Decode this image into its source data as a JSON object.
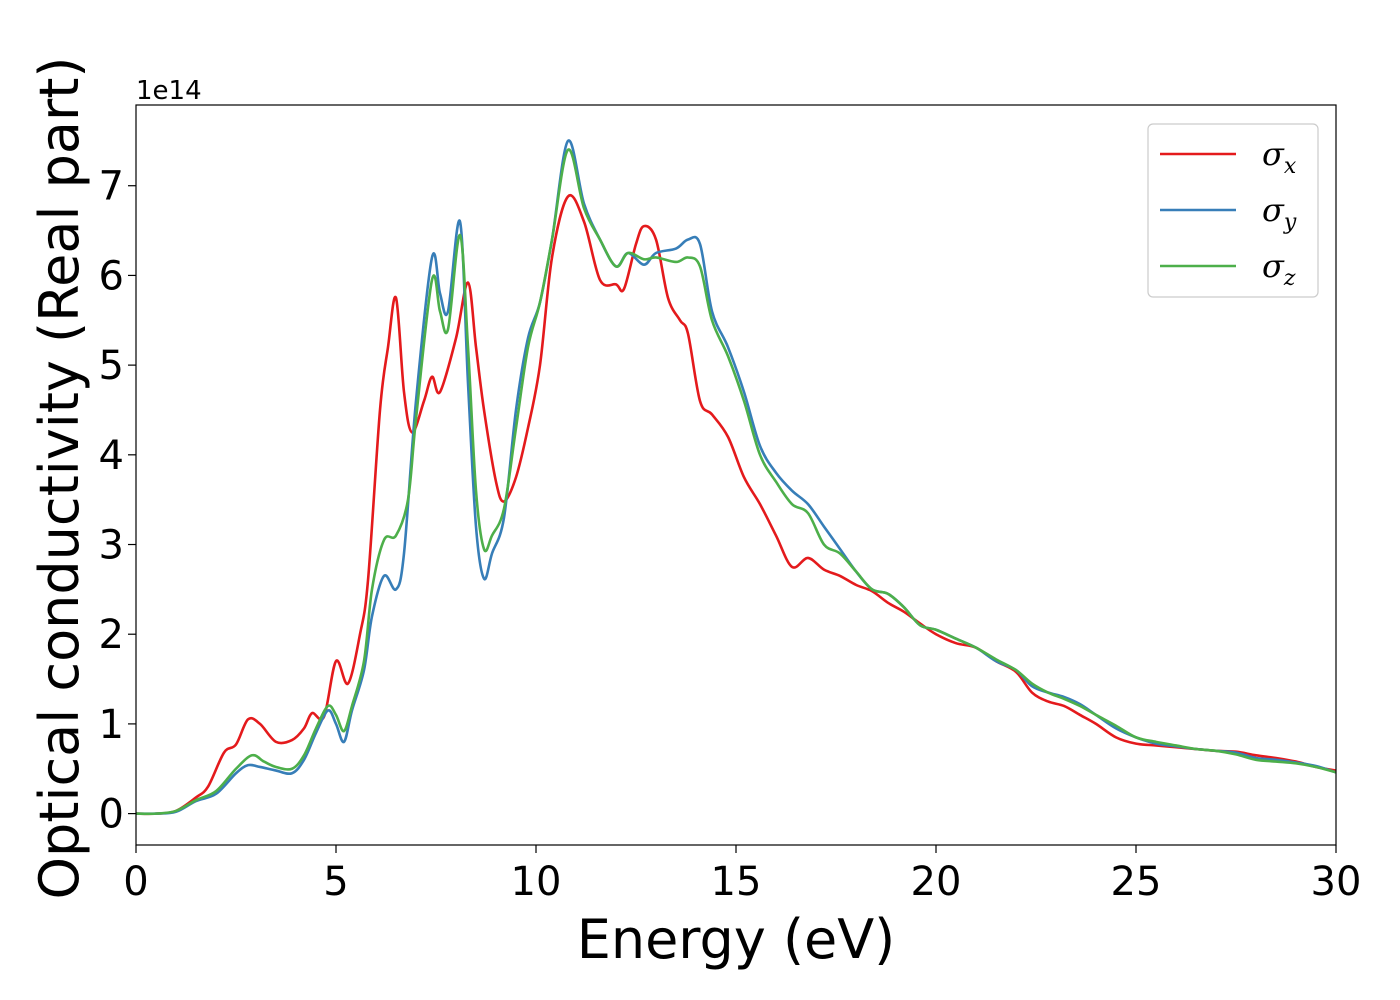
{
  "chart_data": {
    "type": "line",
    "xlabel": "Energy (eV)",
    "ylabel": "Optical conductivity (Real part)",
    "y_offset_label": "1e14",
    "xlim": [
      0,
      30
    ],
    "ylim": [
      -0.35,
      7.9
    ],
    "xticks": [
      0,
      5,
      10,
      15,
      20,
      25,
      30
    ],
    "yticks": [
      0,
      1,
      2,
      3,
      4,
      5,
      6,
      7
    ],
    "grid": false,
    "legend_position": "top-right",
    "series": [
      {
        "name": "σx",
        "symbol": "σ",
        "subscript": "x",
        "color": "#e41a1c",
        "points": [
          [
            0,
            0
          ],
          [
            0.5,
            0
          ],
          [
            1,
            0.03
          ],
          [
            1.5,
            0.18
          ],
          [
            1.8,
            0.3
          ],
          [
            2.2,
            0.68
          ],
          [
            2.5,
            0.77
          ],
          [
            2.8,
            1.05
          ],
          [
            3.1,
            1.0
          ],
          [
            3.5,
            0.8
          ],
          [
            3.9,
            0.82
          ],
          [
            4.2,
            0.95
          ],
          [
            4.4,
            1.12
          ],
          [
            4.7,
            1.08
          ],
          [
            5.0,
            1.7
          ],
          [
            5.3,
            1.45
          ],
          [
            5.6,
            2.0
          ],
          [
            5.8,
            2.6
          ],
          [
            6.1,
            4.5
          ],
          [
            6.3,
            5.2
          ],
          [
            6.5,
            5.75
          ],
          [
            6.7,
            4.7
          ],
          [
            6.9,
            4.25
          ],
          [
            7.2,
            4.6
          ],
          [
            7.4,
            4.87
          ],
          [
            7.6,
            4.7
          ],
          [
            8.0,
            5.3
          ],
          [
            8.3,
            5.92
          ],
          [
            8.5,
            5.2
          ],
          [
            8.7,
            4.5
          ],
          [
            9.0,
            3.7
          ],
          [
            9.2,
            3.48
          ],
          [
            9.5,
            3.75
          ],
          [
            9.8,
            4.3
          ],
          [
            10.1,
            5.0
          ],
          [
            10.4,
            6.2
          ],
          [
            10.8,
            6.88
          ],
          [
            11.2,
            6.6
          ],
          [
            11.6,
            5.95
          ],
          [
            12.0,
            5.9
          ],
          [
            12.2,
            5.85
          ],
          [
            12.5,
            6.35
          ],
          [
            12.7,
            6.55
          ],
          [
            13.0,
            6.4
          ],
          [
            13.3,
            5.75
          ],
          [
            13.6,
            5.5
          ],
          [
            13.8,
            5.35
          ],
          [
            14.1,
            4.6
          ],
          [
            14.4,
            4.45
          ],
          [
            14.8,
            4.2
          ],
          [
            15.2,
            3.75
          ],
          [
            15.6,
            3.45
          ],
          [
            16.0,
            3.1
          ],
          [
            16.4,
            2.75
          ],
          [
            16.8,
            2.85
          ],
          [
            17.2,
            2.72
          ],
          [
            17.6,
            2.65
          ],
          [
            18.0,
            2.55
          ],
          [
            18.4,
            2.48
          ],
          [
            18.8,
            2.35
          ],
          [
            19.2,
            2.25
          ],
          [
            19.6,
            2.12
          ],
          [
            20.0,
            2.0
          ],
          [
            20.5,
            1.9
          ],
          [
            21.0,
            1.85
          ],
          [
            21.5,
            1.7
          ],
          [
            22.0,
            1.58
          ],
          [
            22.4,
            1.35
          ],
          [
            22.8,
            1.25
          ],
          [
            23.2,
            1.2
          ],
          [
            23.6,
            1.1
          ],
          [
            24.0,
            1.0
          ],
          [
            24.5,
            0.85
          ],
          [
            25.0,
            0.78
          ],
          [
            25.5,
            0.76
          ],
          [
            26.0,
            0.74
          ],
          [
            26.5,
            0.72
          ],
          [
            27.0,
            0.7
          ],
          [
            27.5,
            0.69
          ],
          [
            28.0,
            0.65
          ],
          [
            28.5,
            0.62
          ],
          [
            29.0,
            0.58
          ],
          [
            29.5,
            0.52
          ],
          [
            30.0,
            0.48
          ]
        ]
      },
      {
        "name": "σy",
        "symbol": "σ",
        "subscript": "y",
        "color": "#377eb8",
        "points": [
          [
            0,
            0
          ],
          [
            0.5,
            0
          ],
          [
            1,
            0.02
          ],
          [
            1.5,
            0.14
          ],
          [
            2.0,
            0.22
          ],
          [
            2.5,
            0.45
          ],
          [
            2.8,
            0.54
          ],
          [
            3.1,
            0.52
          ],
          [
            3.5,
            0.48
          ],
          [
            3.9,
            0.45
          ],
          [
            4.2,
            0.6
          ],
          [
            4.5,
            0.9
          ],
          [
            4.8,
            1.15
          ],
          [
            5.0,
            1.0
          ],
          [
            5.2,
            0.8
          ],
          [
            5.4,
            1.15
          ],
          [
            5.7,
            1.6
          ],
          [
            5.9,
            2.2
          ],
          [
            6.2,
            2.65
          ],
          [
            6.5,
            2.5
          ],
          [
            6.7,
            2.9
          ],
          [
            7.0,
            4.6
          ],
          [
            7.4,
            6.2
          ],
          [
            7.6,
            5.8
          ],
          [
            7.8,
            5.6
          ],
          [
            8.1,
            6.6
          ],
          [
            8.3,
            4.8
          ],
          [
            8.5,
            3.2
          ],
          [
            8.7,
            2.62
          ],
          [
            8.9,
            2.9
          ],
          [
            9.2,
            3.3
          ],
          [
            9.5,
            4.5
          ],
          [
            9.8,
            5.3
          ],
          [
            10.1,
            5.7
          ],
          [
            10.4,
            6.4
          ],
          [
            10.8,
            7.5
          ],
          [
            11.2,
            6.8
          ],
          [
            11.6,
            6.4
          ],
          [
            12.0,
            6.1
          ],
          [
            12.3,
            6.25
          ],
          [
            12.7,
            6.12
          ],
          [
            13.0,
            6.25
          ],
          [
            13.5,
            6.3
          ],
          [
            13.8,
            6.4
          ],
          [
            14.1,
            6.35
          ],
          [
            14.4,
            5.6
          ],
          [
            14.8,
            5.2
          ],
          [
            15.2,
            4.7
          ],
          [
            15.6,
            4.1
          ],
          [
            16.0,
            3.8
          ],
          [
            16.4,
            3.6
          ],
          [
            16.8,
            3.45
          ],
          [
            17.2,
            3.2
          ],
          [
            17.6,
            2.95
          ],
          [
            18.0,
            2.7
          ],
          [
            18.4,
            2.5
          ],
          [
            18.8,
            2.45
          ],
          [
            19.2,
            2.3
          ],
          [
            19.6,
            2.1
          ],
          [
            20.0,
            2.05
          ],
          [
            20.5,
            1.95
          ],
          [
            21.0,
            1.85
          ],
          [
            21.5,
            1.7
          ],
          [
            22.0,
            1.6
          ],
          [
            22.4,
            1.42
          ],
          [
            22.8,
            1.35
          ],
          [
            23.2,
            1.3
          ],
          [
            23.6,
            1.22
          ],
          [
            24.0,
            1.1
          ],
          [
            24.5,
            0.95
          ],
          [
            25.0,
            0.85
          ],
          [
            25.5,
            0.78
          ],
          [
            26.0,
            0.75
          ],
          [
            26.5,
            0.72
          ],
          [
            27.0,
            0.7
          ],
          [
            27.5,
            0.68
          ],
          [
            28.0,
            0.62
          ],
          [
            28.5,
            0.6
          ],
          [
            29.0,
            0.57
          ],
          [
            29.5,
            0.53
          ],
          [
            30.0,
            0.46
          ]
        ]
      },
      {
        "name": "σz",
        "symbol": "σ",
        "subscript": "z",
        "color": "#4daf4a",
        "points": [
          [
            0,
            0
          ],
          [
            0.5,
            0
          ],
          [
            1,
            0.03
          ],
          [
            1.5,
            0.15
          ],
          [
            2.0,
            0.25
          ],
          [
            2.5,
            0.5
          ],
          [
            2.9,
            0.65
          ],
          [
            3.2,
            0.58
          ],
          [
            3.5,
            0.52
          ],
          [
            3.9,
            0.5
          ],
          [
            4.2,
            0.65
          ],
          [
            4.5,
            0.95
          ],
          [
            4.8,
            1.2
          ],
          [
            5.0,
            1.1
          ],
          [
            5.2,
            0.92
          ],
          [
            5.4,
            1.2
          ],
          [
            5.7,
            1.7
          ],
          [
            5.9,
            2.5
          ],
          [
            6.2,
            3.05
          ],
          [
            6.5,
            3.1
          ],
          [
            6.8,
            3.5
          ],
          [
            7.0,
            4.4
          ],
          [
            7.4,
            5.95
          ],
          [
            7.6,
            5.6
          ],
          [
            7.8,
            5.4
          ],
          [
            8.1,
            6.45
          ],
          [
            8.3,
            5.2
          ],
          [
            8.5,
            3.6
          ],
          [
            8.7,
            2.95
          ],
          [
            8.9,
            3.1
          ],
          [
            9.2,
            3.4
          ],
          [
            9.5,
            4.3
          ],
          [
            9.8,
            5.2
          ],
          [
            10.1,
            5.7
          ],
          [
            10.4,
            6.4
          ],
          [
            10.8,
            7.4
          ],
          [
            11.2,
            6.75
          ],
          [
            11.6,
            6.4
          ],
          [
            12.0,
            6.1
          ],
          [
            12.3,
            6.25
          ],
          [
            12.7,
            6.18
          ],
          [
            13.0,
            6.2
          ],
          [
            13.5,
            6.15
          ],
          [
            13.8,
            6.2
          ],
          [
            14.1,
            6.1
          ],
          [
            14.4,
            5.5
          ],
          [
            14.8,
            5.1
          ],
          [
            15.2,
            4.6
          ],
          [
            15.6,
            4.0
          ],
          [
            16.0,
            3.7
          ],
          [
            16.4,
            3.45
          ],
          [
            16.8,
            3.35
          ],
          [
            17.2,
            3.0
          ],
          [
            17.6,
            2.9
          ],
          [
            18.0,
            2.7
          ],
          [
            18.4,
            2.5
          ],
          [
            18.8,
            2.45
          ],
          [
            19.2,
            2.3
          ],
          [
            19.6,
            2.1
          ],
          [
            20.0,
            2.05
          ],
          [
            20.5,
            1.95
          ],
          [
            21.0,
            1.85
          ],
          [
            21.5,
            1.72
          ],
          [
            22.0,
            1.6
          ],
          [
            22.4,
            1.45
          ],
          [
            22.8,
            1.35
          ],
          [
            23.2,
            1.28
          ],
          [
            23.6,
            1.2
          ],
          [
            24.0,
            1.1
          ],
          [
            24.5,
            0.98
          ],
          [
            25.0,
            0.85
          ],
          [
            25.5,
            0.8
          ],
          [
            26.0,
            0.76
          ],
          [
            26.5,
            0.72
          ],
          [
            27.0,
            0.7
          ],
          [
            27.5,
            0.66
          ],
          [
            28.0,
            0.6
          ],
          [
            28.5,
            0.58
          ],
          [
            29.0,
            0.56
          ],
          [
            29.5,
            0.52
          ],
          [
            30.0,
            0.46
          ]
        ]
      }
    ]
  }
}
